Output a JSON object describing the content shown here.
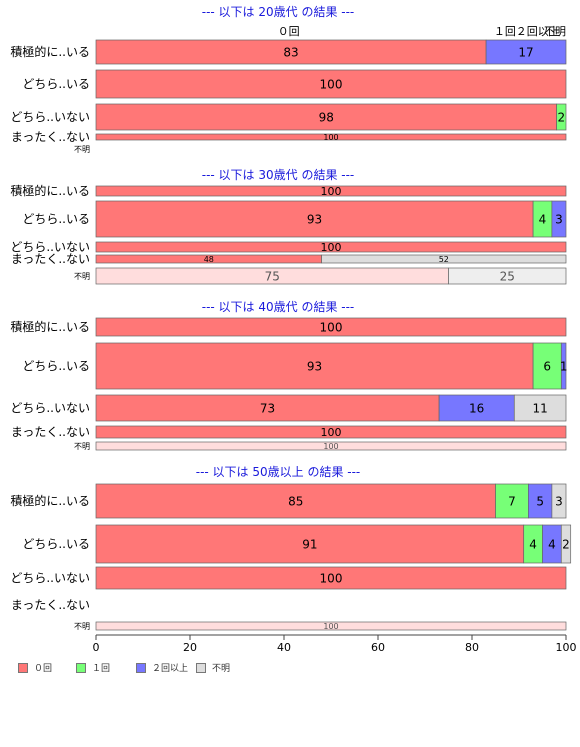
{
  "chart_data": {
    "type": "bar",
    "orientation": "horizontal",
    "stacked": true,
    "percent": true,
    "x_ticks": [
      0,
      20,
      40,
      60,
      80,
      100
    ],
    "xlim": [
      0,
      100
    ],
    "top_labels": [
      "０回",
      "１回",
      "２回以上",
      "不明"
    ],
    "legend": [
      "０回",
      "１回",
      "２回以上",
      "不明"
    ],
    "legend_position": "bottom",
    "colors": [
      "#ff7777",
      "#77ff77",
      "#7777ff",
      "#dddddd"
    ],
    "panels": [
      {
        "title": "--- 以下は 20歳代 の結果 ---",
        "rows": [
          {
            "label": "積極的に..いる",
            "values": [
              83,
              0,
              17,
              0
            ],
            "labels": [
              "83",
              "",
              "17",
              ""
            ]
          },
          {
            "label": "どちら..いる",
            "values": [
              100,
              0,
              0,
              0
            ],
            "labels": [
              "100",
              "",
              "",
              ""
            ]
          },
          {
            "label": "どちら..いない",
            "values": [
              98,
              2,
              0,
              0
            ],
            "labels": [
              "98",
              "2",
              "",
              ""
            ]
          },
          {
            "label": "まったく..ない",
            "values": [
              100,
              0,
              0,
              0
            ],
            "labels": [
              "100",
              "",
              "",
              ""
            ]
          },
          {
            "label": "不明",
            "values": [],
            "labels": []
          }
        ]
      },
      {
        "title": "--- 以下は 30歳代 の結果 ---",
        "rows": [
          {
            "label": "積極的に..いる",
            "values": [
              100,
              0,
              0,
              0
            ],
            "labels": [
              "100",
              "",
              "",
              ""
            ]
          },
          {
            "label": "どちら..いる",
            "values": [
              93,
              4,
              3,
              0
            ],
            "labels": [
              "93",
              "4",
              "3",
              ""
            ]
          },
          {
            "label": "どちら..いない",
            "values": [
              100,
              0,
              0,
              0
            ],
            "labels": [
              "100",
              "",
              "",
              ""
            ]
          },
          {
            "label": "まったく..ない",
            "values": [
              48,
              0,
              0,
              52
            ],
            "labels": [
              "48",
              "",
              "",
              "52"
            ]
          },
          {
            "label": "不明",
            "values": [
              75,
              0,
              0,
              25
            ],
            "labels": [
              "75",
              "",
              "",
              "25"
            ],
            "faded": true
          }
        ]
      },
      {
        "title": "--- 以下は 40歳代 の結果 ---",
        "rows": [
          {
            "label": "積極的に..いる",
            "values": [
              100,
              0,
              0,
              0
            ],
            "labels": [
              "100",
              "",
              "",
              ""
            ]
          },
          {
            "label": "どちら..いる",
            "values": [
              93,
              6,
              1,
              0
            ],
            "labels": [
              "93",
              "6",
              "1",
              ""
            ]
          },
          {
            "label": "どちら..いない",
            "values": [
              73,
              0,
              16,
              11
            ],
            "labels": [
              "73",
              "",
              "16",
              "11"
            ]
          },
          {
            "label": "まったく..ない",
            "values": [
              100,
              0,
              0,
              0
            ],
            "labels": [
              "100",
              "",
              "",
              ""
            ]
          },
          {
            "label": "不明",
            "values": [
              100,
              0,
              0,
              0
            ],
            "labels": [
              "100",
              "",
              "",
              ""
            ],
            "faded": true
          }
        ]
      },
      {
        "title": "--- 以下は 50歳以上 の結果 ---",
        "rows": [
          {
            "label": "積極的に..いる",
            "values": [
              85,
              7,
              5,
              3
            ],
            "labels": [
              "85",
              "7",
              "5",
              "3"
            ]
          },
          {
            "label": "どちら..いる",
            "values": [
              91,
              4,
              4,
              2
            ],
            "labels": [
              "91",
              "4",
              "4",
              "2"
            ]
          },
          {
            "label": "どちら..いない",
            "values": [
              100,
              0,
              0,
              0
            ],
            "labels": [
              "100",
              "",
              "",
              ""
            ]
          },
          {
            "label": "まったく..ない",
            "values": [],
            "labels": []
          },
          {
            "label": "不明",
            "values": [
              100,
              0,
              0,
              0
            ],
            "labels": [
              "100",
              "",
              "",
              ""
            ],
            "faded": true
          }
        ]
      }
    ]
  }
}
